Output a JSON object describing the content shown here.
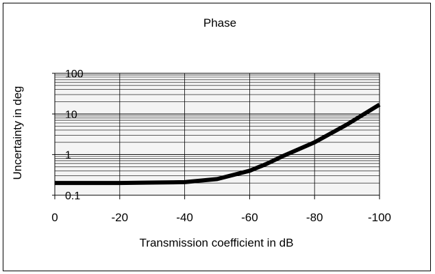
{
  "chart_data": {
    "type": "line",
    "title": "Phase",
    "xlabel": "Transmission coefficient in dB",
    "ylabel": "Uncertainty in deg",
    "x_ticks": [
      "0",
      "-20",
      "-40",
      "-60",
      "-80",
      "-100"
    ],
    "y_ticks": [
      "0.1",
      "1",
      "10",
      "100"
    ],
    "xlim": [
      0,
      -100
    ],
    "ylim": [
      0.1,
      100
    ],
    "y_scale": "log",
    "grid": true,
    "legend": "none",
    "series": [
      {
        "x": [
          0,
          -10,
          -20,
          -30,
          -40,
          -50,
          -60,
          -65,
          -70,
          -80,
          -90,
          -100
        ],
        "y": [
          0.2,
          0.2,
          0.2,
          0.205,
          0.21,
          0.25,
          0.4,
          0.58,
          0.9,
          2.0,
          5.5,
          17
        ]
      }
    ],
    "colors": {
      "line": "#000000",
      "grid": "#000000",
      "plot_bg": "#f4f4f4"
    }
  }
}
